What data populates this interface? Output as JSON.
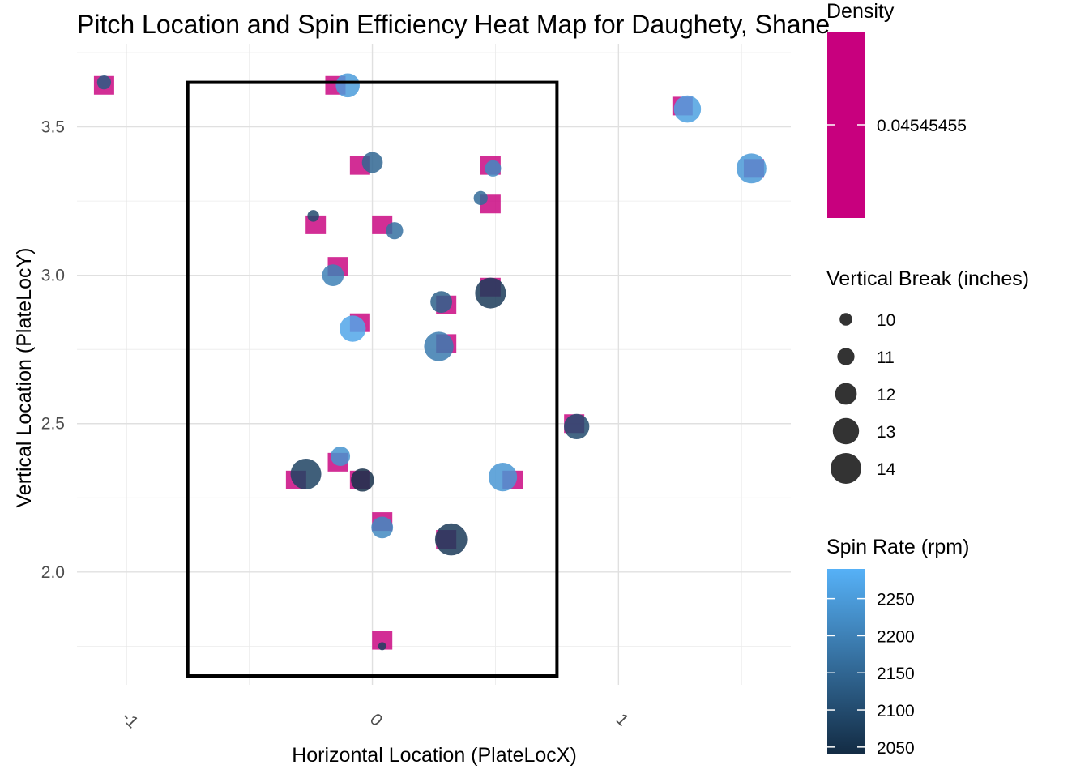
{
  "chart_data": {
    "type": "scatter",
    "title": "Pitch Location and Spin Efficiency Heat Map for Daughety, Shane",
    "xlabel": "Horizontal Location (PlateLocX)",
    "ylabel": "Vertical Location (PlateLocY)",
    "xlim": [
      -1.2,
      1.7
    ],
    "ylim": [
      1.62,
      3.78
    ],
    "x_ticks": [
      -1,
      0,
      1
    ],
    "x_tick_labels": [
      "-1",
      "0",
      "1"
    ],
    "y_ticks": [
      2.0,
      2.5,
      3.0,
      3.5
    ],
    "y_tick_labels": [
      "2.0",
      "2.5",
      "3.0",
      "3.5"
    ],
    "grid": true,
    "strike_zone": {
      "x": [
        -0.75,
        0.75
      ],
      "y": [
        1.65,
        3.65
      ]
    },
    "density_tiles": {
      "value": 0.04545455,
      "color": "#C8007E",
      "points": [
        [
          -1.09,
          3.64
        ],
        [
          -0.15,
          3.64
        ],
        [
          1.26,
          3.57
        ],
        [
          -0.05,
          3.37
        ],
        [
          0.48,
          3.37
        ],
        [
          1.55,
          3.36
        ],
        [
          0.48,
          3.24
        ],
        [
          -0.23,
          3.17
        ],
        [
          0.04,
          3.17
        ],
        [
          -0.14,
          3.03
        ],
        [
          0.48,
          2.96
        ],
        [
          -0.05,
          2.84
        ],
        [
          0.3,
          2.9
        ],
        [
          0.3,
          2.77
        ],
        [
          0.82,
          2.5
        ],
        [
          -0.14,
          2.37
        ],
        [
          -0.31,
          2.31
        ],
        [
          -0.05,
          2.31
        ],
        [
          0.57,
          2.31
        ],
        [
          0.04,
          2.17
        ],
        [
          0.3,
          2.11
        ],
        [
          0.04,
          1.77
        ]
      ]
    },
    "pitches": [
      {
        "x": -1.09,
        "y": 3.65,
        "vb": 10.3,
        "spin": 2130
      },
      {
        "x": -0.1,
        "y": 3.64,
        "vb": 12.5,
        "spin": 2250
      },
      {
        "x": 1.28,
        "y": 3.56,
        "vb": 13.2,
        "spin": 2260
      },
      {
        "x": 0.0,
        "y": 3.38,
        "vb": 11.8,
        "spin": 2150
      },
      {
        "x": 0.49,
        "y": 3.36,
        "vb": 10.8,
        "spin": 2215
      },
      {
        "x": 1.54,
        "y": 3.36,
        "vb": 13.8,
        "spin": 2245
      },
      {
        "x": 0.44,
        "y": 3.26,
        "vb": 10.3,
        "spin": 2160
      },
      {
        "x": -0.24,
        "y": 3.2,
        "vb": 9.8,
        "spin": 2100
      },
      {
        "x": 0.09,
        "y": 3.15,
        "vb": 11.0,
        "spin": 2170
      },
      {
        "x": -0.16,
        "y": 3.0,
        "vb": 12.0,
        "spin": 2200
      },
      {
        "x": 0.48,
        "y": 2.94,
        "vb": 14.0,
        "spin": 2070
      },
      {
        "x": -0.08,
        "y": 2.82,
        "vb": 13.0,
        "spin": 2270
      },
      {
        "x": 0.28,
        "y": 2.91,
        "vb": 12.0,
        "spin": 2140
      },
      {
        "x": 0.27,
        "y": 2.76,
        "vb": 13.7,
        "spin": 2190
      },
      {
        "x": 0.83,
        "y": 2.49,
        "vb": 12.8,
        "spin": 2100
      },
      {
        "x": -0.13,
        "y": 2.39,
        "vb": 11.5,
        "spin": 2235
      },
      {
        "x": -0.27,
        "y": 2.33,
        "vb": 14.0,
        "spin": 2085
      },
      {
        "x": -0.04,
        "y": 2.31,
        "vb": 12.3,
        "spin": 2050
      },
      {
        "x": 0.53,
        "y": 2.32,
        "vb": 13.5,
        "spin": 2240
      },
      {
        "x": 0.04,
        "y": 2.15,
        "vb": 12.0,
        "spin": 2215
      },
      {
        "x": 0.32,
        "y": 2.11,
        "vb": 14.3,
        "spin": 2070
      },
      {
        "x": 0.04,
        "y": 1.75,
        "vb": 9.0,
        "spin": 2080
      }
    ],
    "legends": {
      "density": {
        "title": "Density",
        "labels": [
          "0.04545455"
        ],
        "color": "#C8007E"
      },
      "vertical_break": {
        "title": "Vertical Break (inches)",
        "values": [
          10,
          11,
          12,
          13,
          14
        ],
        "color": "#333333"
      },
      "spin_rate": {
        "title": "Spin Rate (rpm)",
        "ticks": [
          2250,
          2200,
          2150,
          2100,
          2050
        ],
        "range": [
          2040,
          2290
        ],
        "low_color": "#132B43",
        "high_color": "#56B1F7"
      }
    }
  }
}
